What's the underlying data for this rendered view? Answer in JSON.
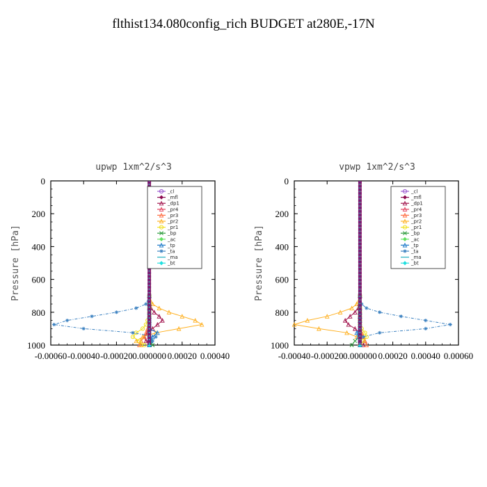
{
  "title": "flthist134.080config_rich  BUDGET at280E,-17N",
  "chart_data": [
    {
      "type": "line",
      "title": "upwp   1xm^2/s^3",
      "ylabel": "Pressure [hPa]",
      "xlim": [
        -0.0006,
        0.0004
      ],
      "ylim": [
        1000,
        0
      ],
      "xticks": [
        "-0.00060",
        "-0.00040",
        "-0.00020",
        "0.000000",
        "0.00020",
        "0.00040"
      ],
      "yticks": [
        "0",
        "200",
        "400",
        "600",
        "800",
        "1000"
      ],
      "y": [
        0,
        200,
        400,
        600,
        700,
        750,
        775,
        800,
        825,
        850,
        875,
        900,
        925,
        950,
        975,
        1000
      ],
      "series": [
        {
          "name": "_cl",
          "values": [
            0,
            0,
            0,
            0,
            0,
            0,
            0,
            0,
            0,
            0,
            0,
            0,
            0,
            0,
            0,
            0
          ]
        },
        {
          "name": "_mfl",
          "values": [
            0,
            0,
            0,
            0,
            0,
            0,
            0,
            0,
            0,
            0,
            0,
            0,
            0,
            0,
            0,
            0
          ]
        },
        {
          "name": "_dp1",
          "values": [
            0,
            0,
            0,
            0,
            0,
            5e-06,
            1e-05,
            3e-05,
            6e-05,
            8e-05,
            5e-05,
            2e-05,
            -1e-05,
            -3e-05,
            -2e-05,
            0
          ]
        },
        {
          "name": "_pr4",
          "values": [
            0,
            0,
            0,
            0,
            0,
            0,
            0,
            0,
            0,
            0,
            0,
            0,
            0,
            0,
            0,
            0
          ]
        },
        {
          "name": "_pr3",
          "values": [
            0,
            0,
            0,
            0,
            0,
            0,
            0,
            0,
            0,
            0,
            0,
            -1e-05,
            -2e-05,
            -3e-05,
            -5e-05,
            -6e-05
          ]
        },
        {
          "name": "_pr2",
          "values": [
            0,
            0,
            0,
            0,
            0,
            2e-05,
            6e-05,
            0.00012,
            0.0002,
            0.00028,
            0.00032,
            0.00018,
            4e-05,
            -4e-05,
            -8e-05,
            -5e-05
          ]
        },
        {
          "name": "_pr1",
          "values": [
            0,
            0,
            0,
            0,
            0,
            0,
            0,
            0,
            0,
            -1e-05,
            -2e-05,
            -4e-05,
            -8e-05,
            -0.0001,
            -6e-05,
            -3e-05
          ]
        },
        {
          "name": "_bp",
          "values": [
            0,
            0,
            0,
            0,
            0,
            0,
            0,
            0,
            0,
            0,
            0,
            0,
            0,
            0,
            1e-05,
            2e-05
          ]
        },
        {
          "name": "_ac",
          "values": [
            0,
            0,
            0,
            0,
            0,
            0,
            0,
            0,
            0,
            0,
            0,
            0,
            0,
            0,
            0,
            0
          ]
        },
        {
          "name": "_tp",
          "values": [
            0,
            0,
            0,
            0,
            0,
            0,
            0,
            0,
            0,
            0,
            0,
            0,
            5e-05,
            2e-05,
            1e-05,
            0
          ]
        },
        {
          "name": "_ta",
          "values": [
            0,
            0,
            0,
            0,
            0,
            -2e-05,
            -8e-05,
            -0.0002,
            -0.00035,
            -0.0005,
            -0.00058,
            -0.0004,
            -0.0001,
            4e-05,
            2e-05,
            0
          ]
        },
        {
          "name": "_ma",
          "values": [
            0,
            0,
            0,
            0,
            0,
            0,
            0,
            0,
            0,
            0,
            0,
            0,
            0,
            0,
            0,
            0
          ]
        },
        {
          "name": "_bt",
          "values": [
            0,
            0,
            0,
            0,
            0,
            0,
            0,
            0,
            0,
            0,
            0,
            0,
            0,
            0,
            0,
            0
          ]
        }
      ]
    },
    {
      "type": "line",
      "title": "vpwp   1xm^2/s^3",
      "ylabel": "Pressure [hPa]",
      "xlim": [
        -0.0004,
        0.0006
      ],
      "ylim": [
        1000,
        0
      ],
      "xticks": [
        "-0.00040",
        "-0.00020",
        "0.000000",
        "0.00020",
        "0.00040",
        "0.00060"
      ],
      "yticks": [
        "0",
        "200",
        "400",
        "600",
        "800",
        "1000"
      ],
      "y": [
        0,
        200,
        400,
        600,
        700,
        750,
        775,
        800,
        825,
        850,
        875,
        900,
        925,
        950,
        975,
        1000
      ],
      "series": [
        {
          "name": "_cl",
          "values": [
            0,
            0,
            0,
            0,
            0,
            0,
            0,
            0,
            0,
            0,
            0,
            0,
            0,
            0,
            0,
            0
          ]
        },
        {
          "name": "_mfl",
          "values": [
            0,
            0,
            0,
            0,
            0,
            0,
            0,
            0,
            0,
            0,
            0,
            0,
            0,
            0,
            0,
            0
          ]
        },
        {
          "name": "_dp1",
          "values": [
            0,
            0,
            0,
            0,
            0,
            -5e-06,
            -1e-05,
            -3e-05,
            -6e-05,
            -9e-05,
            -7e-05,
            -3e-05,
            0,
            2e-05,
            3e-05,
            2e-05
          ]
        },
        {
          "name": "_pr4",
          "values": [
            0,
            0,
            0,
            0,
            0,
            0,
            0,
            0,
            0,
            0,
            0,
            0,
            0,
            0,
            0,
            0
          ]
        },
        {
          "name": "_pr3",
          "values": [
            0,
            0,
            0,
            0,
            0,
            0,
            0,
            0,
            0,
            0,
            0,
            0,
            1e-05,
            2e-05,
            3e-05,
            4e-05
          ]
        },
        {
          "name": "_pr2",
          "values": [
            0,
            0,
            0,
            0,
            0,
            -2e-05,
            -5e-05,
            -0.00012,
            -0.0002,
            -0.00032,
            -0.0004,
            -0.00025,
            -8e-05,
            -2e-05,
            0,
            0
          ]
        },
        {
          "name": "_pr1",
          "values": [
            0,
            0,
            0,
            0,
            0,
            0,
            0,
            0,
            0,
            0,
            0,
            1e-05,
            3e-05,
            4e-05,
            2e-05,
            0
          ]
        },
        {
          "name": "_bp",
          "values": [
            0,
            0,
            0,
            0,
            0,
            0,
            0,
            0,
            0,
            0,
            0,
            0,
            0,
            0,
            -3e-05,
            -5e-05
          ]
        },
        {
          "name": "_ac",
          "values": [
            0,
            0,
            0,
            0,
            0,
            0,
            0,
            0,
            0,
            0,
            0,
            0,
            0,
            0,
            0,
            0
          ]
        },
        {
          "name": "_tp",
          "values": [
            0,
            0,
            0,
            0,
            0,
            0,
            0,
            0,
            0,
            0,
            0,
            0,
            -2e-05,
            -1e-05,
            0,
            0
          ]
        },
        {
          "name": "_ta",
          "values": [
            0,
            0,
            0,
            0,
            0,
            1e-05,
            4e-05,
            0.00012,
            0.00025,
            0.0004,
            0.00055,
            0.0004,
            0.00012,
            2e-05,
            0,
            0
          ]
        },
        {
          "name": "_ma",
          "values": [
            0,
            0,
            0,
            0,
            0,
            0,
            0,
            0,
            0,
            0,
            0,
            0,
            0,
            0,
            0,
            0
          ]
        },
        {
          "name": "_bt",
          "values": [
            0,
            0,
            0,
            0,
            0,
            0,
            0,
            0,
            0,
            0,
            0,
            0,
            0,
            0,
            0,
            0
          ]
        }
      ]
    }
  ],
  "legend_placement": "top-right",
  "series_styles": {
    "_cl": {
      "color": "#9b59d0",
      "marker": "circle"
    },
    "_mfl": {
      "color": "#8b0a50",
      "marker": "diamond"
    },
    "_dp1": {
      "color": "#a0104a",
      "marker": "triangle"
    },
    "_pr4": {
      "color": "#e03c5a",
      "marker": "triangle"
    },
    "_pr3": {
      "color": "#ff6a3d",
      "marker": "triangle"
    },
    "_pr2": {
      "color": "#ffb020",
      "marker": "triangle"
    },
    "_pr1": {
      "color": "#f0e020",
      "marker": "circle"
    },
    "_bp": {
      "color": "#2a9a3a",
      "marker": "cross"
    },
    "_ac": {
      "color": "#60e060",
      "marker": "diamond"
    },
    "_tp": {
      "color": "#1a78c8",
      "marker": "triangle"
    },
    "_ta": {
      "color": "#3a80c0",
      "marker": "star"
    },
    "_ma": {
      "color": "#20b0c0",
      "marker": "none"
    },
    "_bt": {
      "color": "#20e0e0",
      "marker": "diamond"
    }
  }
}
